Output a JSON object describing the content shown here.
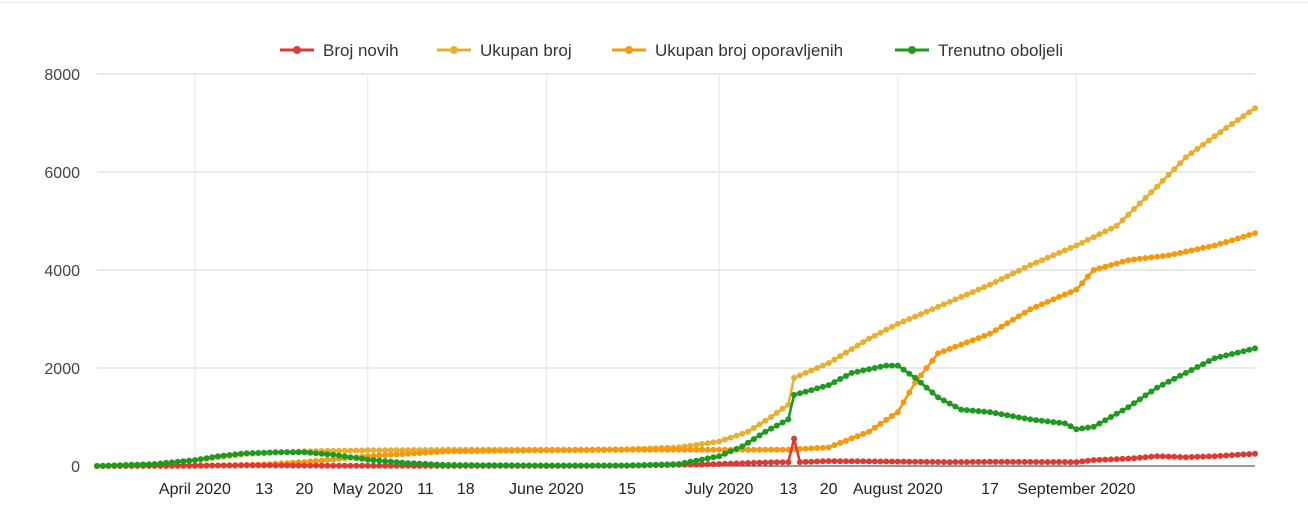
{
  "chart_data": {
    "type": "line",
    "title": "",
    "xlabel": "",
    "ylabel": "",
    "ylim": [
      0,
      8000
    ],
    "yticks": [
      "0",
      "2000",
      "4000",
      "6000",
      "8000"
    ],
    "grid": true,
    "legend_position": "top",
    "x_start": "2020-03-15",
    "x_end": "2020-10-02",
    "xticks": [
      {
        "date": "2020-04-01",
        "label": "April 2020",
        "major": true
      },
      {
        "date": "2020-04-13",
        "label": "13",
        "major": false
      },
      {
        "date": "2020-04-20",
        "label": "20",
        "major": false
      },
      {
        "date": "2020-05-01",
        "label": "May 2020",
        "major": true
      },
      {
        "date": "2020-05-11",
        "label": "11",
        "major": false
      },
      {
        "date": "2020-05-18",
        "label": "18",
        "major": false
      },
      {
        "date": "2020-06-01",
        "label": "June 2020",
        "major": true
      },
      {
        "date": "2020-06-15",
        "label": "15",
        "major": false
      },
      {
        "date": "2020-07-01",
        "label": "July 2020",
        "major": true
      },
      {
        "date": "2020-07-13",
        "label": "13",
        "major": false
      },
      {
        "date": "2020-07-20",
        "label": "20",
        "major": false
      },
      {
        "date": "2020-08-01",
        "label": "August 2020",
        "major": true
      },
      {
        "date": "2020-08-17",
        "label": "17",
        "major": false
      },
      {
        "date": "2020-09-01",
        "label": "September 2020",
        "major": true
      }
    ],
    "series": [
      {
        "name": "Broj novih",
        "color": "#dc3a34",
        "points": [
          [
            "2020-03-15",
            0
          ],
          [
            "2020-04-01",
            10
          ],
          [
            "2020-04-13",
            12
          ],
          [
            "2020-04-20",
            8
          ],
          [
            "2020-05-01",
            4
          ],
          [
            "2020-05-18",
            2
          ],
          [
            "2020-06-01",
            1
          ],
          [
            "2020-06-15",
            5
          ],
          [
            "2020-07-01",
            40
          ],
          [
            "2020-07-08",
            70
          ],
          [
            "2020-07-13",
            80
          ],
          [
            "2020-07-14",
            560
          ],
          [
            "2020-07-15",
            80
          ],
          [
            "2020-07-20",
            100
          ],
          [
            "2020-08-01",
            90
          ],
          [
            "2020-08-10",
            80
          ],
          [
            "2020-08-17",
            85
          ],
          [
            "2020-09-01",
            80
          ],
          [
            "2020-09-04",
            120
          ],
          [
            "2020-09-10",
            150
          ],
          [
            "2020-09-15",
            200
          ],
          [
            "2020-09-20",
            180
          ],
          [
            "2020-09-25",
            200
          ],
          [
            "2020-10-02",
            250
          ]
        ]
      },
      {
        "name": "Ukupan broj",
        "color": "#e8b030",
        "points": [
          [
            "2020-03-15",
            0
          ],
          [
            "2020-03-25",
            30
          ],
          [
            "2020-04-01",
            120
          ],
          [
            "2020-04-10",
            250
          ],
          [
            "2020-04-20",
            300
          ],
          [
            "2020-05-01",
            320
          ],
          [
            "2020-05-15",
            330
          ],
          [
            "2020-06-01",
            330
          ],
          [
            "2020-06-15",
            340
          ],
          [
            "2020-06-24",
            380
          ],
          [
            "2020-07-01",
            500
          ],
          [
            "2020-07-06",
            700
          ],
          [
            "2020-07-10",
            1000
          ],
          [
            "2020-07-13",
            1250
          ],
          [
            "2020-07-14",
            1800
          ],
          [
            "2020-07-20",
            2100
          ],
          [
            "2020-07-27",
            2600
          ],
          [
            "2020-08-01",
            2900
          ],
          [
            "2020-08-08",
            3250
          ],
          [
            "2020-08-17",
            3700
          ],
          [
            "2020-08-24",
            4100
          ],
          [
            "2020-09-01",
            4500
          ],
          [
            "2020-09-08",
            4900
          ],
          [
            "2020-09-15",
            5700
          ],
          [
            "2020-09-20",
            6300
          ],
          [
            "2020-09-27",
            6900
          ],
          [
            "2020-10-02",
            7300
          ]
        ]
      },
      {
        "name": "Ukupan broj oporavljenih",
        "color": "#f39a0f",
        "points": [
          [
            "2020-03-15",
            0
          ],
          [
            "2020-04-01",
            0
          ],
          [
            "2020-04-13",
            30
          ],
          [
            "2020-04-20",
            80
          ],
          [
            "2020-05-01",
            200
          ],
          [
            "2020-05-15",
            300
          ],
          [
            "2020-06-01",
            320
          ],
          [
            "2020-06-15",
            330
          ],
          [
            "2020-07-01",
            330
          ],
          [
            "2020-07-13",
            330
          ],
          [
            "2020-07-14",
            340
          ],
          [
            "2020-07-20",
            380
          ],
          [
            "2020-07-27",
            700
          ],
          [
            "2020-08-01",
            1100
          ],
          [
            "2020-08-04",
            1700
          ],
          [
            "2020-08-08",
            2300
          ],
          [
            "2020-08-17",
            2700
          ],
          [
            "2020-08-24",
            3200
          ],
          [
            "2020-09-01",
            3600
          ],
          [
            "2020-09-04",
            4000
          ],
          [
            "2020-09-10",
            4200
          ],
          [
            "2020-09-17",
            4300
          ],
          [
            "2020-09-25",
            4500
          ],
          [
            "2020-10-02",
            4750
          ]
        ]
      },
      {
        "name": "Trenutno oboljeli",
        "color": "#1e9b1e",
        "points": [
          [
            "2020-03-15",
            0
          ],
          [
            "2020-03-25",
            40
          ],
          [
            "2020-04-01",
            120
          ],
          [
            "2020-04-05",
            200
          ],
          [
            "2020-04-10",
            260
          ],
          [
            "2020-04-15",
            280
          ],
          [
            "2020-04-20",
            280
          ],
          [
            "2020-04-25",
            230
          ],
          [
            "2020-05-01",
            130
          ],
          [
            "2020-05-08",
            60
          ],
          [
            "2020-05-15",
            20
          ],
          [
            "2020-06-01",
            10
          ],
          [
            "2020-06-15",
            10
          ],
          [
            "2020-06-24",
            40
          ],
          [
            "2020-07-01",
            200
          ],
          [
            "2020-07-05",
            400
          ],
          [
            "2020-07-09",
            700
          ],
          [
            "2020-07-13",
            950
          ],
          [
            "2020-07-14",
            1450
          ],
          [
            "2020-07-20",
            1650
          ],
          [
            "2020-07-24",
            1900
          ],
          [
            "2020-07-30",
            2050
          ],
          [
            "2020-08-01",
            2050
          ],
          [
            "2020-08-04",
            1800
          ],
          [
            "2020-08-08",
            1400
          ],
          [
            "2020-08-12",
            1150
          ],
          [
            "2020-08-17",
            1100
          ],
          [
            "2020-08-24",
            950
          ],
          [
            "2020-08-30",
            870
          ],
          [
            "2020-09-01",
            750
          ],
          [
            "2020-09-04",
            800
          ],
          [
            "2020-09-10",
            1200
          ],
          [
            "2020-09-15",
            1600
          ],
          [
            "2020-09-20",
            1900
          ],
          [
            "2020-09-25",
            2200
          ],
          [
            "2020-10-02",
            2400
          ]
        ]
      }
    ]
  }
}
